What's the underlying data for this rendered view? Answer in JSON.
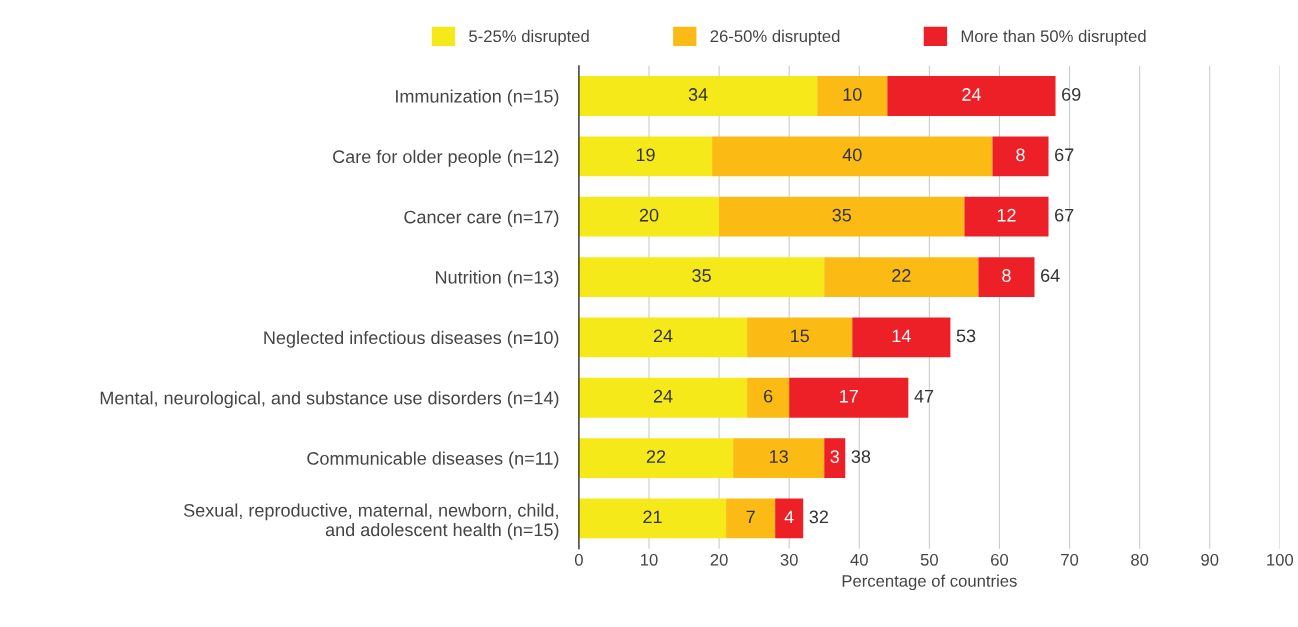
{
  "chart_data": {
    "type": "bar",
    "orientation": "horizontal",
    "stacked": true,
    "xlabel": "Percentage of countries",
    "categories": [
      "Immunization (n=15)",
      "Care for older people (n=12)",
      "Cancer care (n=17)",
      "Nutrition (n=13)",
      "Neglected infectious diseases (n=10)",
      "Mental, neurological, and substance use disorders (n=14)",
      "Communicable diseases (n=11)",
      "Sexual, reproductive, maternal, newborn, child,\nand adolescent health (n=15)"
    ],
    "series": [
      {
        "name": "5-25% disrupted",
        "color": "#f5e91a",
        "values": [
          34,
          19,
          20,
          35,
          24,
          24,
          22,
          21
        ]
      },
      {
        "name": "26-50% disrupted",
        "color": "#fbbb14",
        "values": [
          10,
          40,
          35,
          22,
          15,
          6,
          13,
          7
        ]
      },
      {
        "name": "More than 50% disrupted",
        "color": "#ee2027",
        "values": [
          24,
          8,
          12,
          8,
          14,
          17,
          3,
          4
        ]
      }
    ],
    "totals": [
      "69",
      "67",
      "67",
      "64",
      "53",
      "47",
      "38",
      "32"
    ],
    "data_labels": true,
    "xlim": [
      0,
      100
    ],
    "xticks": [
      0,
      10,
      20,
      30,
      40,
      50,
      60,
      70,
      80,
      90,
      100
    ],
    "grid": "x",
    "legend": "top"
  }
}
